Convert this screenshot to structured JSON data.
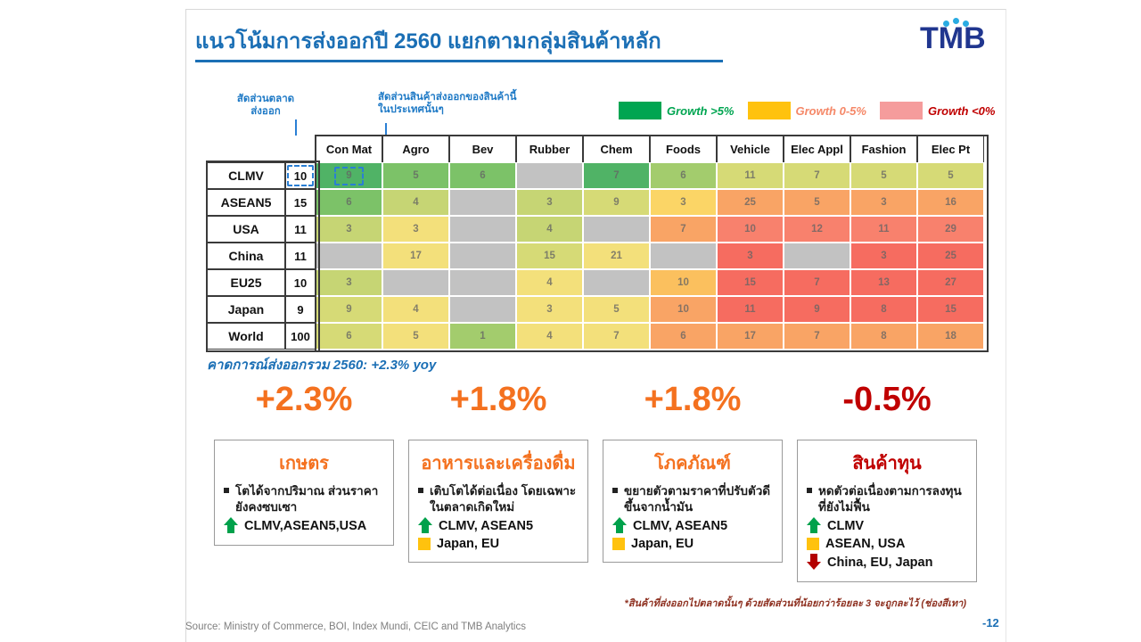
{
  "slide": {
    "title": "แนวโน้มการส่งออกปี 2560 แยกตามกลุ่มสินค้าหลัก",
    "logo_text": "TMB",
    "forecast_note": "คาดการณ์ส่งออกรวม 2560: +2.3% yoy",
    "footnote": "*สินค้าที่ส่งออกไปตลาดนั้นๆ ด้วยสัดส่วนที่น้อยกว่าร้อยละ 3 จะถูกละไว้ (ช่องสีเทา)",
    "source": "Source: Ministry of Commerce, BOI, Index Mundi, CEIC and TMB Analytics",
    "page_number": "-12"
  },
  "annotations": {
    "market_share": "สัดส่วนตลาด\nส่งออก",
    "product_share": "สัดส่วนสินค้าส่งออกของสินค้านี้\nในประเทศนั้นๆ"
  },
  "legend": {
    "items": [
      {
        "label": "Growth >5%",
        "swatch": "#00a551",
        "text_color": "#00a551"
      },
      {
        "label": "Growth 0-5%",
        "swatch": "#ffc20e",
        "text_color": "#f58868"
      },
      {
        "label": "Growth <0%",
        "swatch": "#f59c9c",
        "text_color": "#c00000"
      }
    ]
  },
  "chart_data": {
    "type": "heatmap",
    "title": "แนวโน้มการส่งออกปี 2560 แยกตามกลุ่มสินค้าหลัก",
    "value_note": "cell value = share of that product in exports to that market (%); cell color = growth bucket; gray = share < 3%",
    "columns": [
      "Con Mat",
      "Agro",
      "Bev",
      "Rubber",
      "Chem",
      "Foods",
      "Vehicle",
      "Elec Appl",
      "Fashion",
      "Elec Pt"
    ],
    "share_column_header": "",
    "rows": [
      {
        "label": "CLMV",
        "share": "10",
        "cells": [
          {
            "v": "9",
            "c": "g1"
          },
          {
            "v": "5",
            "c": "g2"
          },
          {
            "v": "6",
            "c": "g2"
          },
          {
            "v": "",
            "c": "na"
          },
          {
            "v": "7",
            "c": "g1"
          },
          {
            "v": "6",
            "c": "g3"
          },
          {
            "v": "11",
            "c": "yg"
          },
          {
            "v": "7",
            "c": "yg"
          },
          {
            "v": "5",
            "c": "yg"
          },
          {
            "v": "5",
            "c": "yg"
          }
        ]
      },
      {
        "label": "ASEAN5",
        "share": "15",
        "cells": [
          {
            "v": "6",
            "c": "g2"
          },
          {
            "v": "4",
            "c": "yg2"
          },
          {
            "v": "",
            "c": "na"
          },
          {
            "v": "3",
            "c": "yg2"
          },
          {
            "v": "9",
            "c": "yg"
          },
          {
            "v": "3",
            "c": "gold"
          },
          {
            "v": "25",
            "c": "o"
          },
          {
            "v": "5",
            "c": "o"
          },
          {
            "v": "3",
            "c": "o"
          },
          {
            "v": "16",
            "c": "o"
          }
        ]
      },
      {
        "label": "USA",
        "share": "11",
        "cells": [
          {
            "v": "3",
            "c": "yg2"
          },
          {
            "v": "3",
            "c": "y"
          },
          {
            "v": "",
            "c": "na"
          },
          {
            "v": "4",
            "c": "yg2"
          },
          {
            "v": "",
            "c": "na"
          },
          {
            "v": "7",
            "c": "o"
          },
          {
            "v": "10",
            "c": "r"
          },
          {
            "v": "12",
            "c": "r"
          },
          {
            "v": "11",
            "c": "r"
          },
          {
            "v": "29",
            "c": "r"
          }
        ]
      },
      {
        "label": "China",
        "share": "11",
        "cells": [
          {
            "v": "",
            "c": "na"
          },
          {
            "v": "17",
            "c": "y"
          },
          {
            "v": "",
            "c": "na"
          },
          {
            "v": "15",
            "c": "yg"
          },
          {
            "v": "21",
            "c": "y"
          },
          {
            "v": "",
            "c": "na"
          },
          {
            "v": "3",
            "c": "rr"
          },
          {
            "v": "",
            "c": "na"
          },
          {
            "v": "3",
            "c": "rr"
          },
          {
            "v": "25",
            "c": "rr"
          }
        ]
      },
      {
        "label": "EU25",
        "share": "10",
        "cells": [
          {
            "v": "3",
            "c": "yg2"
          },
          {
            "v": "",
            "c": "na"
          },
          {
            "v": "",
            "c": "na"
          },
          {
            "v": "4",
            "c": "y"
          },
          {
            "v": "",
            "c": "na"
          },
          {
            "v": "10",
            "c": "go"
          },
          {
            "v": "15",
            "c": "rr"
          },
          {
            "v": "7",
            "c": "rr"
          },
          {
            "v": "13",
            "c": "rr"
          },
          {
            "v": "27",
            "c": "rr"
          }
        ]
      },
      {
        "label": "Japan",
        "share": "9",
        "cells": [
          {
            "v": "9",
            "c": "yg"
          },
          {
            "v": "4",
            "c": "y"
          },
          {
            "v": "",
            "c": "na"
          },
          {
            "v": "3",
            "c": "y"
          },
          {
            "v": "5",
            "c": "y"
          },
          {
            "v": "10",
            "c": "o"
          },
          {
            "v": "11",
            "c": "rr"
          },
          {
            "v": "9",
            "c": "rr"
          },
          {
            "v": "8",
            "c": "rr"
          },
          {
            "v": "15",
            "c": "rr"
          }
        ]
      },
      {
        "label": "World",
        "share": "100",
        "cells": [
          {
            "v": "6",
            "c": "yg"
          },
          {
            "v": "5",
            "c": "y"
          },
          {
            "v": "1",
            "c": "g3"
          },
          {
            "v": "4",
            "c": "y"
          },
          {
            "v": "7",
            "c": "y"
          },
          {
            "v": "6",
            "c": "o"
          },
          {
            "v": "17",
            "c": "o"
          },
          {
            "v": "7",
            "c": "o"
          },
          {
            "v": "8",
            "c": "o"
          },
          {
            "v": "18",
            "c": "o"
          }
        ]
      }
    ],
    "palette": {
      "g1": "#50b366",
      "g2": "#7cc268",
      "g3": "#a3cc6d",
      "yg": "#d6da76",
      "yg2": "#c6d574",
      "y": "#f3e07b",
      "gold": "#fbd566",
      "go": "#fbc05e",
      "o": "#f9a465",
      "r": "#f8816d",
      "rr": "#f66c60",
      "na": "#c2c2c2"
    },
    "legend": [
      "Growth >5%",
      "Growth 0-5%",
      "Growth <0%"
    ]
  },
  "highlights": [
    {
      "pct": "+2.3%",
      "color": "#f4711f"
    },
    {
      "pct": "+1.8%",
      "color": "#f4711f"
    },
    {
      "pct": "+1.8%",
      "color": "#f4711f"
    },
    {
      "pct": "-0.5%",
      "color": "#c00000"
    }
  ],
  "boxes": [
    {
      "title": "เกษตร",
      "title_color": "#f4711f",
      "bullet": "โตได้จากปริมาณ ส่วนราคายังคงซบเซา",
      "items": [
        {
          "marker": "up",
          "text": "CLMV,ASEAN5,USA"
        }
      ]
    },
    {
      "title": "อาหารและเครื่องดื่ม",
      "title_color": "#f4711f",
      "bullet": "เติบโตได้ต่อเนื่อง โดยเฉพาะในตลาดเกิดใหม่",
      "items": [
        {
          "marker": "up",
          "text": "CLMV, ASEAN5"
        },
        {
          "marker": "flat",
          "text": "Japan, EU"
        }
      ]
    },
    {
      "title": "โภคภัณฑ์",
      "title_color": "#f4711f",
      "bullet": "ขยายตัวตามราคาที่ปรับตัวดีขึ้นจากน้ำมัน",
      "items": [
        {
          "marker": "up",
          "text": "CLMV, ASEAN5"
        },
        {
          "marker": "flat",
          "text": "Japan, EU"
        }
      ]
    },
    {
      "title": "สินค้าทุน",
      "title_color": "#c00000",
      "bullet": "หดตัวต่อเนื่องตามการลงทุนที่ยังไม่ฟื้น",
      "items": [
        {
          "marker": "up",
          "text": "CLMV"
        },
        {
          "marker": "flat",
          "text": "ASEAN, USA"
        },
        {
          "marker": "down",
          "text": "China, EU, Japan"
        }
      ]
    }
  ],
  "marker_colors": {
    "up": "#00a14b",
    "flat": "#ffc20e",
    "down": "#b30000"
  }
}
